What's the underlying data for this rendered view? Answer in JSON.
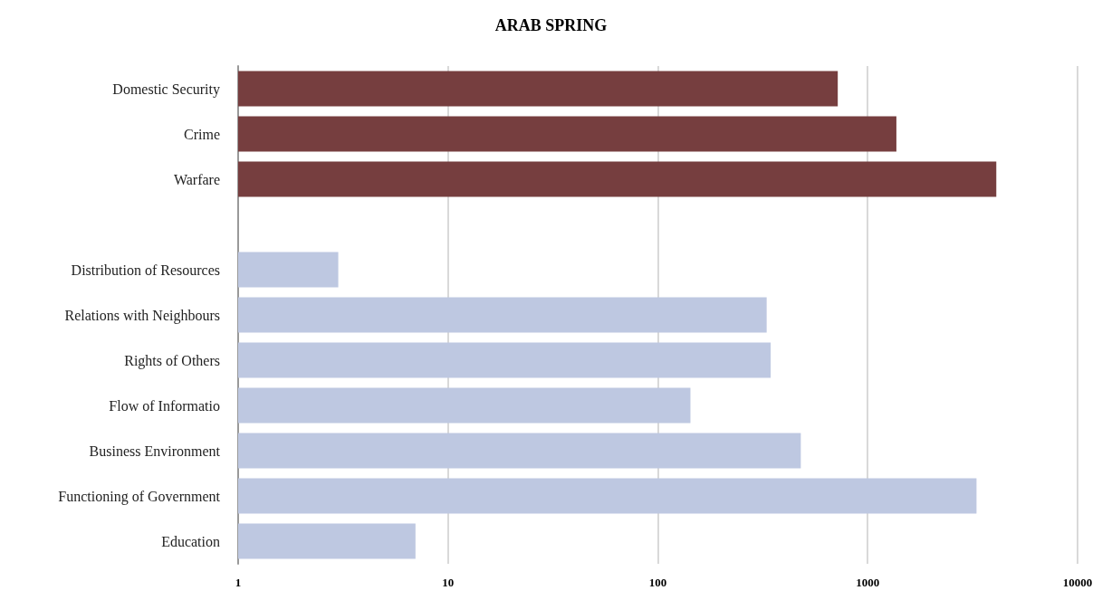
{
  "chart_data": {
    "type": "bar",
    "title": "ARAB SPRING",
    "orientation": "horizontal",
    "log": "x",
    "categories": [
      "Domestic Security",
      "Crime",
      "Warfare",
      null,
      "Distribution of Resources",
      "Relations with Neighbours",
      "Rights of Others",
      "Flow of Informatio",
      "Business Environment",
      "Functioning of Government",
      "Education"
    ],
    "values": [
      720,
      1370,
      4100,
      null,
      3,
      330,
      345,
      143,
      480,
      3300,
      7
    ],
    "colors": [
      "#763e3f",
      "#763e3f",
      "#763e3f",
      null,
      "#bec8e1",
      "#bec8e1",
      "#bec8e1",
      "#bec8e1",
      "#bec8e1",
      "#bec8e1",
      "#bec8e1"
    ],
    "xlim": [
      1,
      10000
    ],
    "xticks": [
      1,
      10,
      100,
      1000,
      10000
    ],
    "grid": "x"
  }
}
